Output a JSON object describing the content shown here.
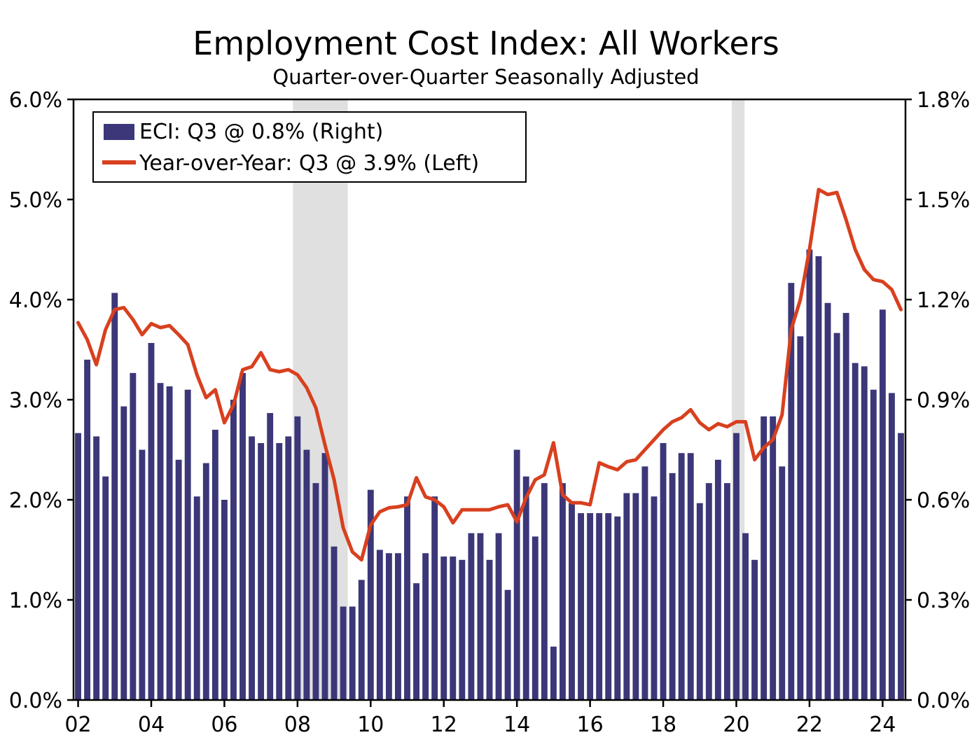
{
  "title": "Employment Cost Index: All Workers",
  "subtitle": "Quarter-over-Quarter Seasonally Adjusted",
  "colors": {
    "bar": "#3b3778",
    "line": "#d8401f",
    "recession_band": "#e0e0e0",
    "frame": "#000000",
    "background": "#ffffff"
  },
  "chart_data": {
    "type": "combo",
    "title": "Employment Cost Index: All Workers",
    "subtitle": "Quarter-over-Quarter Seasonally Adjusted",
    "x": {
      "start": "2002Q1",
      "frequency": "quarterly",
      "n_quarters": 91,
      "end": "2024Q3"
    },
    "x_ticks": {
      "labels": [
        "02",
        "04",
        "06",
        "08",
        "10",
        "12",
        "14",
        "16",
        "18",
        "20",
        "22",
        "24"
      ],
      "quarter_indices": [
        0,
        8,
        16,
        24,
        32,
        40,
        48,
        56,
        64,
        72,
        80,
        88
      ]
    },
    "left_axis": {
      "min": 0,
      "max": 6,
      "tick_values": [
        0,
        1,
        2,
        3,
        4,
        5,
        6
      ],
      "tick_labels": [
        "0.0%",
        "1.0%",
        "2.0%",
        "3.0%",
        "4.0%",
        "5.0%",
        "6.0%"
      ]
    },
    "right_axis": {
      "min": 0,
      "max": 1.8,
      "tick_values": [
        0,
        0.3,
        0.6,
        0.9,
        1.2,
        1.5,
        1.8
      ],
      "tick_labels": [
        "0.0%",
        "0.3%",
        "0.6%",
        "0.9%",
        "1.2%",
        "1.5%",
        "1.8%"
      ]
    },
    "legend": {
      "position": "top-left-inside"
    },
    "recessions": [
      {
        "start_q": 24,
        "end_q": 30,
        "note": "2008Q1-2009Q2 band"
      },
      {
        "start_q": 72,
        "end_q": 73.4,
        "note": "2020 band"
      }
    ],
    "series": [
      {
        "name": "ECI: Q3 @ 0.8% (Right)",
        "type": "bar",
        "axis": "right",
        "color": "#3b3778",
        "values": [
          0.8,
          1.02,
          0.79,
          0.67,
          1.22,
          0.88,
          0.98,
          0.75,
          1.07,
          0.95,
          0.94,
          0.72,
          0.93,
          0.61,
          0.71,
          0.81,
          0.6,
          0.9,
          0.98,
          0.79,
          0.77,
          0.86,
          0.77,
          0.79,
          0.85,
          0.75,
          0.65,
          0.74,
          0.46,
          0.28,
          0.28,
          0.36,
          0.63,
          0.45,
          0.44,
          0.44,
          0.61,
          0.35,
          0.44,
          0.61,
          0.43,
          0.43,
          0.42,
          0.5,
          0.5,
          0.42,
          0.5,
          0.33,
          0.75,
          0.67,
          0.49,
          0.65,
          0.16,
          0.65,
          0.59,
          0.56,
          0.56,
          0.56,
          0.56,
          0.55,
          0.62,
          0.62,
          0.7,
          0.61,
          0.77,
          0.68,
          0.74,
          0.74,
          0.59,
          0.65,
          0.72,
          0.65,
          0.8,
          0.5,
          0.42,
          0.85,
          0.85,
          0.7,
          1.25,
          1.09,
          1.35,
          1.33,
          1.19,
          1.1,
          1.16,
          1.01,
          1.0,
          0.93,
          1.17,
          0.92,
          0.8
        ]
      },
      {
        "name": "Year-over-Year: Q3 @ 3.9% (Left)",
        "type": "line",
        "axis": "left",
        "color": "#d8401f",
        "values": [
          3.77,
          3.6,
          3.35,
          3.7,
          3.9,
          3.92,
          3.8,
          3.65,
          3.76,
          3.72,
          3.74,
          3.65,
          3.55,
          3.25,
          3.02,
          3.1,
          2.77,
          2.95,
          3.3,
          3.33,
          3.47,
          3.3,
          3.28,
          3.3,
          3.25,
          3.12,
          2.92,
          2.55,
          2.2,
          1.72,
          1.48,
          1.4,
          1.75,
          1.88,
          1.92,
          1.93,
          1.95,
          2.22,
          2.03,
          2.0,
          1.93,
          1.77,
          1.9,
          1.9,
          1.9,
          1.9,
          1.93,
          1.95,
          1.78,
          2.02,
          2.2,
          2.25,
          2.57,
          2.05,
          1.97,
          1.97,
          1.95,
          2.37,
          2.33,
          2.3,
          2.38,
          2.4,
          2.5,
          2.6,
          2.7,
          2.78,
          2.82,
          2.9,
          2.77,
          2.7,
          2.76,
          2.73,
          2.78,
          2.78,
          2.4,
          2.52,
          2.6,
          2.85,
          3.7,
          4.0,
          4.5,
          5.1,
          5.05,
          5.07,
          4.8,
          4.5,
          4.3,
          4.2,
          4.18,
          4.1,
          3.9
        ]
      }
    ]
  }
}
